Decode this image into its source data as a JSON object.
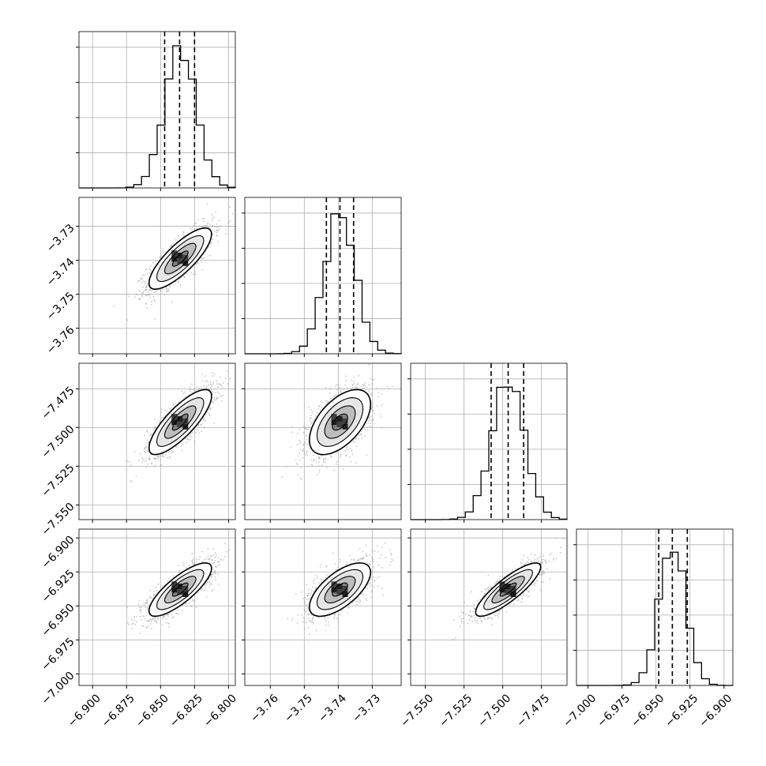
{
  "chart_data": {
    "type": "corner",
    "grid": true,
    "colors": {
      "hist": "#000000",
      "quantile": "#000000",
      "grid": "#b0b0b0",
      "scatter": "#9a9a9a"
    },
    "params": [
      {
        "range": [
          -6.91,
          -6.795
        ],
        "ticks": [
          -6.9,
          -6.875,
          -6.85,
          -6.825,
          -6.8
        ],
        "tick_labels": [
          "−6.900",
          "−6.875",
          "−6.850",
          "−6.825",
          "−6.800"
        ],
        "mean": -6.8355,
        "sd": 0.0115,
        "quantiles": [
          -6.847,
          -6.836,
          -6.825
        ]
      },
      {
        "range": [
          -3.7675,
          -3.7215
        ],
        "ticks": [
          -3.76,
          -3.75,
          -3.74,
          -3.73
        ],
        "tick_labels": [
          "−3.76",
          "−3.75",
          "−3.74",
          "−3.73"
        ],
        "mean": -3.7395,
        "sd": 0.0045,
        "quantiles": [
          -3.7435,
          -3.7395,
          -3.7355
        ]
      },
      {
        "range": [
          -7.5595,
          -7.4585
        ],
        "ticks": [
          -7.55,
          -7.525,
          -7.5,
          -7.475
        ],
        "tick_labels": [
          "−7.550",
          "−7.525",
          "−7.500",
          "−7.475"
        ],
        "mean": -7.4965,
        "sd": 0.0105,
        "quantiles": [
          -7.5075,
          -7.4965,
          -7.4865
        ]
      },
      {
        "range": [
          -7.0085,
          -6.8935
        ],
        "ticks": [
          -7.0,
          -6.975,
          -6.95,
          -6.925,
          -6.9
        ],
        "tick_labels": [
          "−7.000",
          "−6.975",
          "−6.950",
          "−6.925",
          "−6.900"
        ],
        "mean": -6.938,
        "sd": 0.0098,
        "quantiles": [
          -6.948,
          -6.938,
          -6.927
        ]
      }
    ],
    "correlations": {
      "1-0": 0.8,
      "2-0": 0.8,
      "2-1": 0.55,
      "3-0": 0.8,
      "3-1": 0.65,
      "3-2": 0.85
    },
    "contour_levels_sigma": [
      0.5,
      1.0,
      1.5,
      2.0
    ]
  }
}
